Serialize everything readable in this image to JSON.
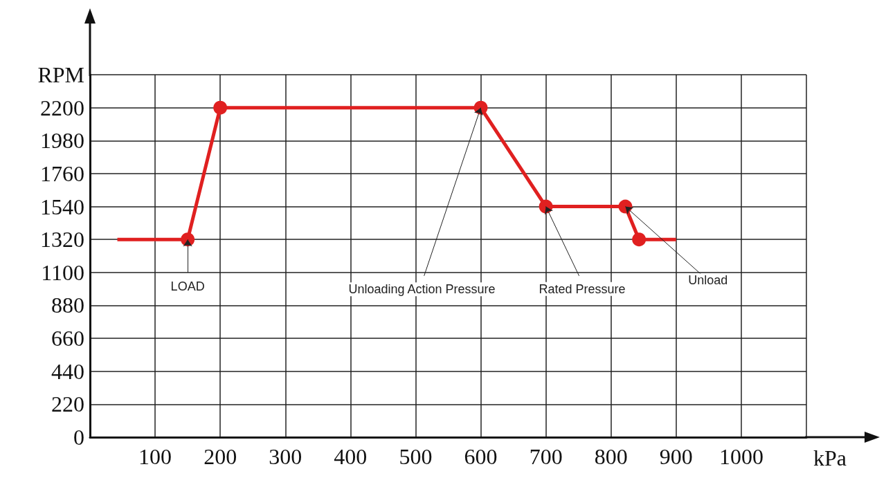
{
  "chart_data": {
    "type": "line",
    "xlabel": "kPa",
    "x": [
      42,
      150,
      200,
      600,
      700,
      822,
      843,
      900
    ],
    "series": [
      {
        "color": "#e02020",
        "values": [
          1320,
          1320,
          2200,
          2200,
          1540,
          1540,
          1320,
          1320
        ]
      }
    ],
    "xlim": [
      0,
      1100
    ],
    "xticks": [
      100,
      200,
      300,
      400,
      500,
      600,
      700,
      800,
      900,
      1000,
      {
        "value": 1100,
        "label": null
      }
    ],
    "ylim": [
      0,
      2420
    ],
    "yticks": [
      0,
      220,
      440,
      660,
      880,
      1100,
      1320,
      1540,
      1760,
      1980,
      2200,
      {
        "value": 2420,
        "label": "RPM"
      }
    ],
    "grid": true,
    "marker": "circle",
    "line_style": "solid",
    "annotations": [
      {
        "text": "LOAD",
        "x": 150,
        "y": 1320
      },
      {
        "text": "Unloading Action Pressure",
        "x": 600,
        "y": 2200
      },
      {
        "text": "Rated Pressure",
        "x": 700,
        "y": 1540
      },
      {
        "text": "Unload",
        "x": 822,
        "y": 1540
      }
    ]
  }
}
